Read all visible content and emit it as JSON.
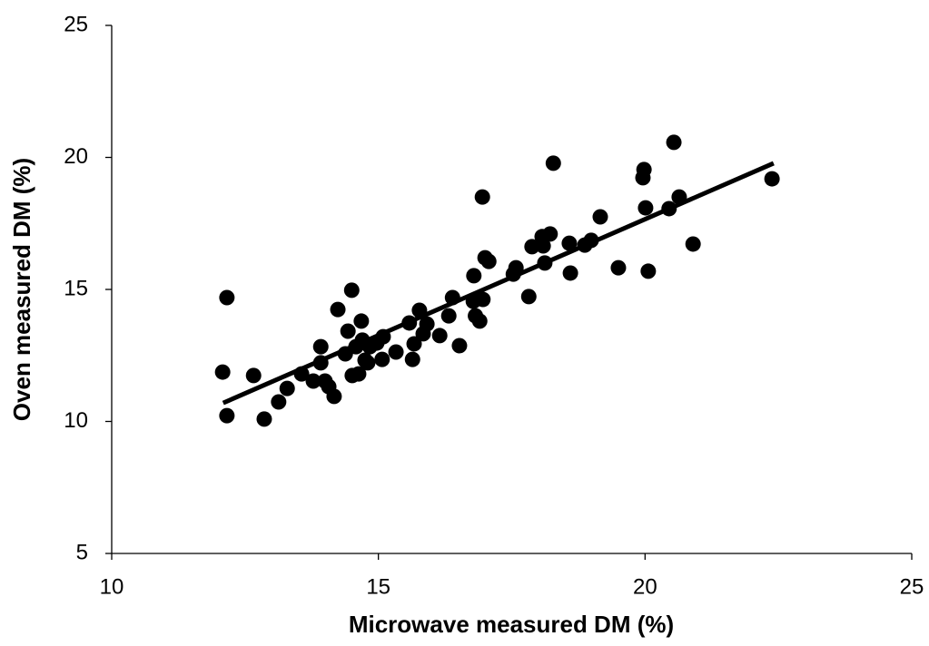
{
  "chart_data": {
    "type": "scatter",
    "x_label": "Microwave  measured DM (%)",
    "y_label": "Oven measured  DM (%)",
    "x": [
      12.08,
      12.16,
      12.16,
      12.66,
      12.86,
      13.13,
      13.29,
      13.56,
      13.78,
      13.92,
      13.92,
      14.0,
      14.07,
      14.17,
      14.24,
      14.38,
      14.43,
      14.5,
      14.51,
      14.58,
      14.63,
      14.68,
      14.7,
      14.75,
      14.8,
      14.84,
      14.97,
      15.09,
      15.07,
      15.33,
      15.58,
      15.64,
      15.67,
      15.77,
      15.84,
      15.91,
      16.15,
      16.32,
      16.39,
      16.52,
      16.78,
      16.79,
      16.82,
      16.9,
      16.95,
      16.96,
      17.0,
      17.07,
      17.53,
      17.58,
      17.82,
      17.88,
      18.07,
      18.09,
      18.12,
      18.22,
      18.28,
      18.58,
      18.6,
      18.87,
      18.99,
      19.16,
      19.5,
      19.96,
      19.98,
      20.01,
      20.06,
      20.45,
      20.54,
      20.64,
      20.9,
      22.38
    ],
    "values": [
      11.87,
      14.69,
      10.22,
      11.74,
      10.09,
      10.74,
      11.25,
      11.8,
      11.53,
      12.83,
      12.22,
      11.53,
      11.32,
      10.95,
      14.24,
      12.56,
      13.42,
      14.97,
      11.74,
      12.83,
      11.8,
      13.8,
      13.08,
      12.32,
      12.22,
      12.83,
      12.97,
      13.21,
      12.35,
      12.63,
      13.73,
      12.35,
      12.94,
      14.21,
      13.32,
      13.69,
      13.25,
      14.0,
      14.69,
      12.87,
      14.55,
      15.52,
      14.0,
      13.8,
      18.5,
      14.62,
      16.2,
      16.06,
      15.58,
      15.82,
      14.73,
      16.62,
      17.0,
      16.65,
      16.0,
      17.1,
      19.78,
      16.75,
      15.62,
      16.68,
      16.86,
      17.75,
      15.82,
      19.23,
      19.54,
      18.09,
      15.69,
      18.06,
      20.57,
      18.5,
      16.72,
      19.19
    ],
    "color": "#000000",
    "trendline": {
      "x": [
        12.09,
        22.41
      ],
      "y": [
        10.7,
        19.78
      ],
      "color": "#000000"
    },
    "xlim": [
      10,
      25
    ],
    "xticks": [
      10,
      15,
      20,
      25
    ],
    "ylim": [
      5,
      25
    ],
    "yticks": [
      5,
      10,
      15,
      20,
      25
    ],
    "grid": false
  }
}
